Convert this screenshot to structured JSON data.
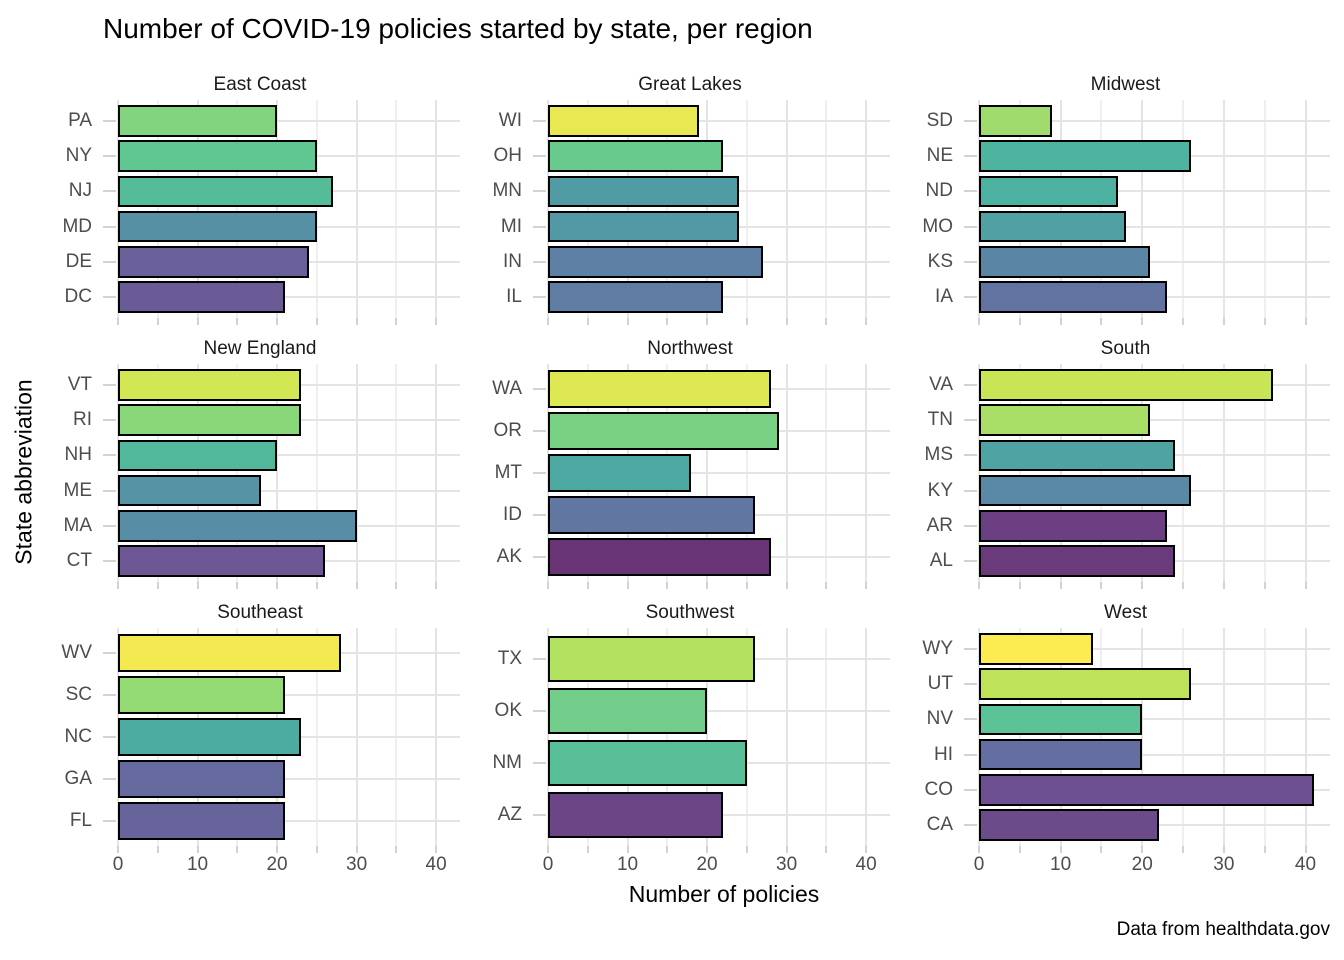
{
  "title": "Number of COVID-19 policies started by state, per region",
  "caption": "Data from healthdata.gov",
  "axes": {
    "x_label": "Number of policies",
    "y_label": "State abbreviation",
    "x_ticks": [
      0,
      10,
      20,
      30,
      40
    ],
    "x_minor_step": 5,
    "x_max": 43
  },
  "style": {
    "bar_border": "#000000",
    "grid_major": "#e4e4e4",
    "grid_minor": "#efefef",
    "tick_color": "#d2d2d2",
    "axis_text_color": "#4d4d4d",
    "strip_text_color": "#1a1a1a"
  },
  "chart_data": [
    {
      "type": "bar",
      "orientation": "horizontal",
      "title": "East Coast",
      "xlim": [
        0,
        43
      ],
      "categories": [
        "PA",
        "NY",
        "NJ",
        "MD",
        "DE",
        "DC"
      ],
      "values": [
        20,
        25,
        27,
        25,
        24,
        21
      ],
      "colors": [
        "#82D47F",
        "#60C792",
        "#55BC9A",
        "#5690A5",
        "#695F99",
        "#6A5B97"
      ]
    },
    {
      "type": "bar",
      "orientation": "horizontal",
      "title": "Great Lakes",
      "xlim": [
        0,
        43
      ],
      "categories": [
        "WI",
        "OH",
        "MN",
        "MI",
        "IN",
        "IL"
      ],
      "values": [
        19,
        22,
        24,
        24,
        27,
        22
      ],
      "colors": [
        "#E8E952",
        "#69CA8D",
        "#519CA4",
        "#5398A5",
        "#5D80A4",
        "#5F7CA3"
      ]
    },
    {
      "type": "bar",
      "orientation": "horizontal",
      "title": "Midwest",
      "xlim": [
        0,
        43
      ],
      "categories": [
        "SD",
        "NE",
        "ND",
        "MO",
        "KS",
        "IA"
      ],
      "values": [
        9,
        26,
        17,
        18,
        21,
        23
      ],
      "colors": [
        "#9FDC6D",
        "#4EB49F",
        "#4CB1A1",
        "#50A0A4",
        "#5B85A4",
        "#6273A1"
      ]
    },
    {
      "type": "bar",
      "orientation": "horizontal",
      "title": "New England",
      "xlim": [
        0,
        43
      ],
      "categories": [
        "VT",
        "RI",
        "NH",
        "ME",
        "MA",
        "CT"
      ],
      "values": [
        23,
        23,
        20,
        18,
        30,
        26
      ],
      "colors": [
        "#D3E754",
        "#8AD77A",
        "#52B89C",
        "#5494A5",
        "#578DA5",
        "#6C5694"
      ]
    },
    {
      "type": "bar",
      "orientation": "horizontal",
      "title": "Northwest",
      "xlim": [
        0,
        43
      ],
      "categories": [
        "WA",
        "OR",
        "MT",
        "ID",
        "AK"
      ],
      "values": [
        28,
        29,
        18,
        26,
        28
      ],
      "colors": [
        "#DEE853",
        "#79D184",
        "#4EA8A2",
        "#6177A2",
        "#693476"
      ]
    },
    {
      "type": "bar",
      "orientation": "horizontal",
      "title": "South",
      "xlim": [
        0,
        43
      ],
      "categories": [
        "VA",
        "TN",
        "MS",
        "KY",
        "AR",
        "AL"
      ],
      "values": [
        36,
        21,
        24,
        26,
        23,
        24
      ],
      "colors": [
        "#C8E555",
        "#A9DF66",
        "#4FA4A3",
        "#5989A5",
        "#6B3F81",
        "#6A3A7B"
      ]
    },
    {
      "type": "bar",
      "orientation": "horizontal",
      "title": "Southeast",
      "xlim": [
        0,
        43
      ],
      "categories": [
        "WV",
        "SC",
        "NC",
        "GA",
        "FL"
      ],
      "values": [
        28,
        21,
        23,
        21,
        21
      ],
      "colors": [
        "#F3EA51",
        "#94DA74",
        "#4DACA1",
        "#66699E",
        "#67649C"
      ]
    },
    {
      "type": "bar",
      "orientation": "horizontal",
      "title": "Southwest",
      "xlim": [
        0,
        43
      ],
      "categories": [
        "TX",
        "OK",
        "NM",
        "AZ"
      ],
      "values": [
        26,
        20,
        25,
        22
      ],
      "colors": [
        "#B3E160",
        "#71CD89",
        "#58BF98",
        "#6B4586"
      ]
    },
    {
      "type": "bar",
      "orientation": "horizontal",
      "title": "West",
      "xlim": [
        0,
        43
      ],
      "categories": [
        "WY",
        "UT",
        "NV",
        "HI",
        "CO",
        "CA"
      ],
      "values": [
        14,
        26,
        20,
        20,
        41,
        22
      ],
      "colors": [
        "#FDEC51",
        "#BEE359",
        "#5BC395",
        "#646EA1",
        "#6C5091",
        "#6C4B8B"
      ]
    }
  ]
}
